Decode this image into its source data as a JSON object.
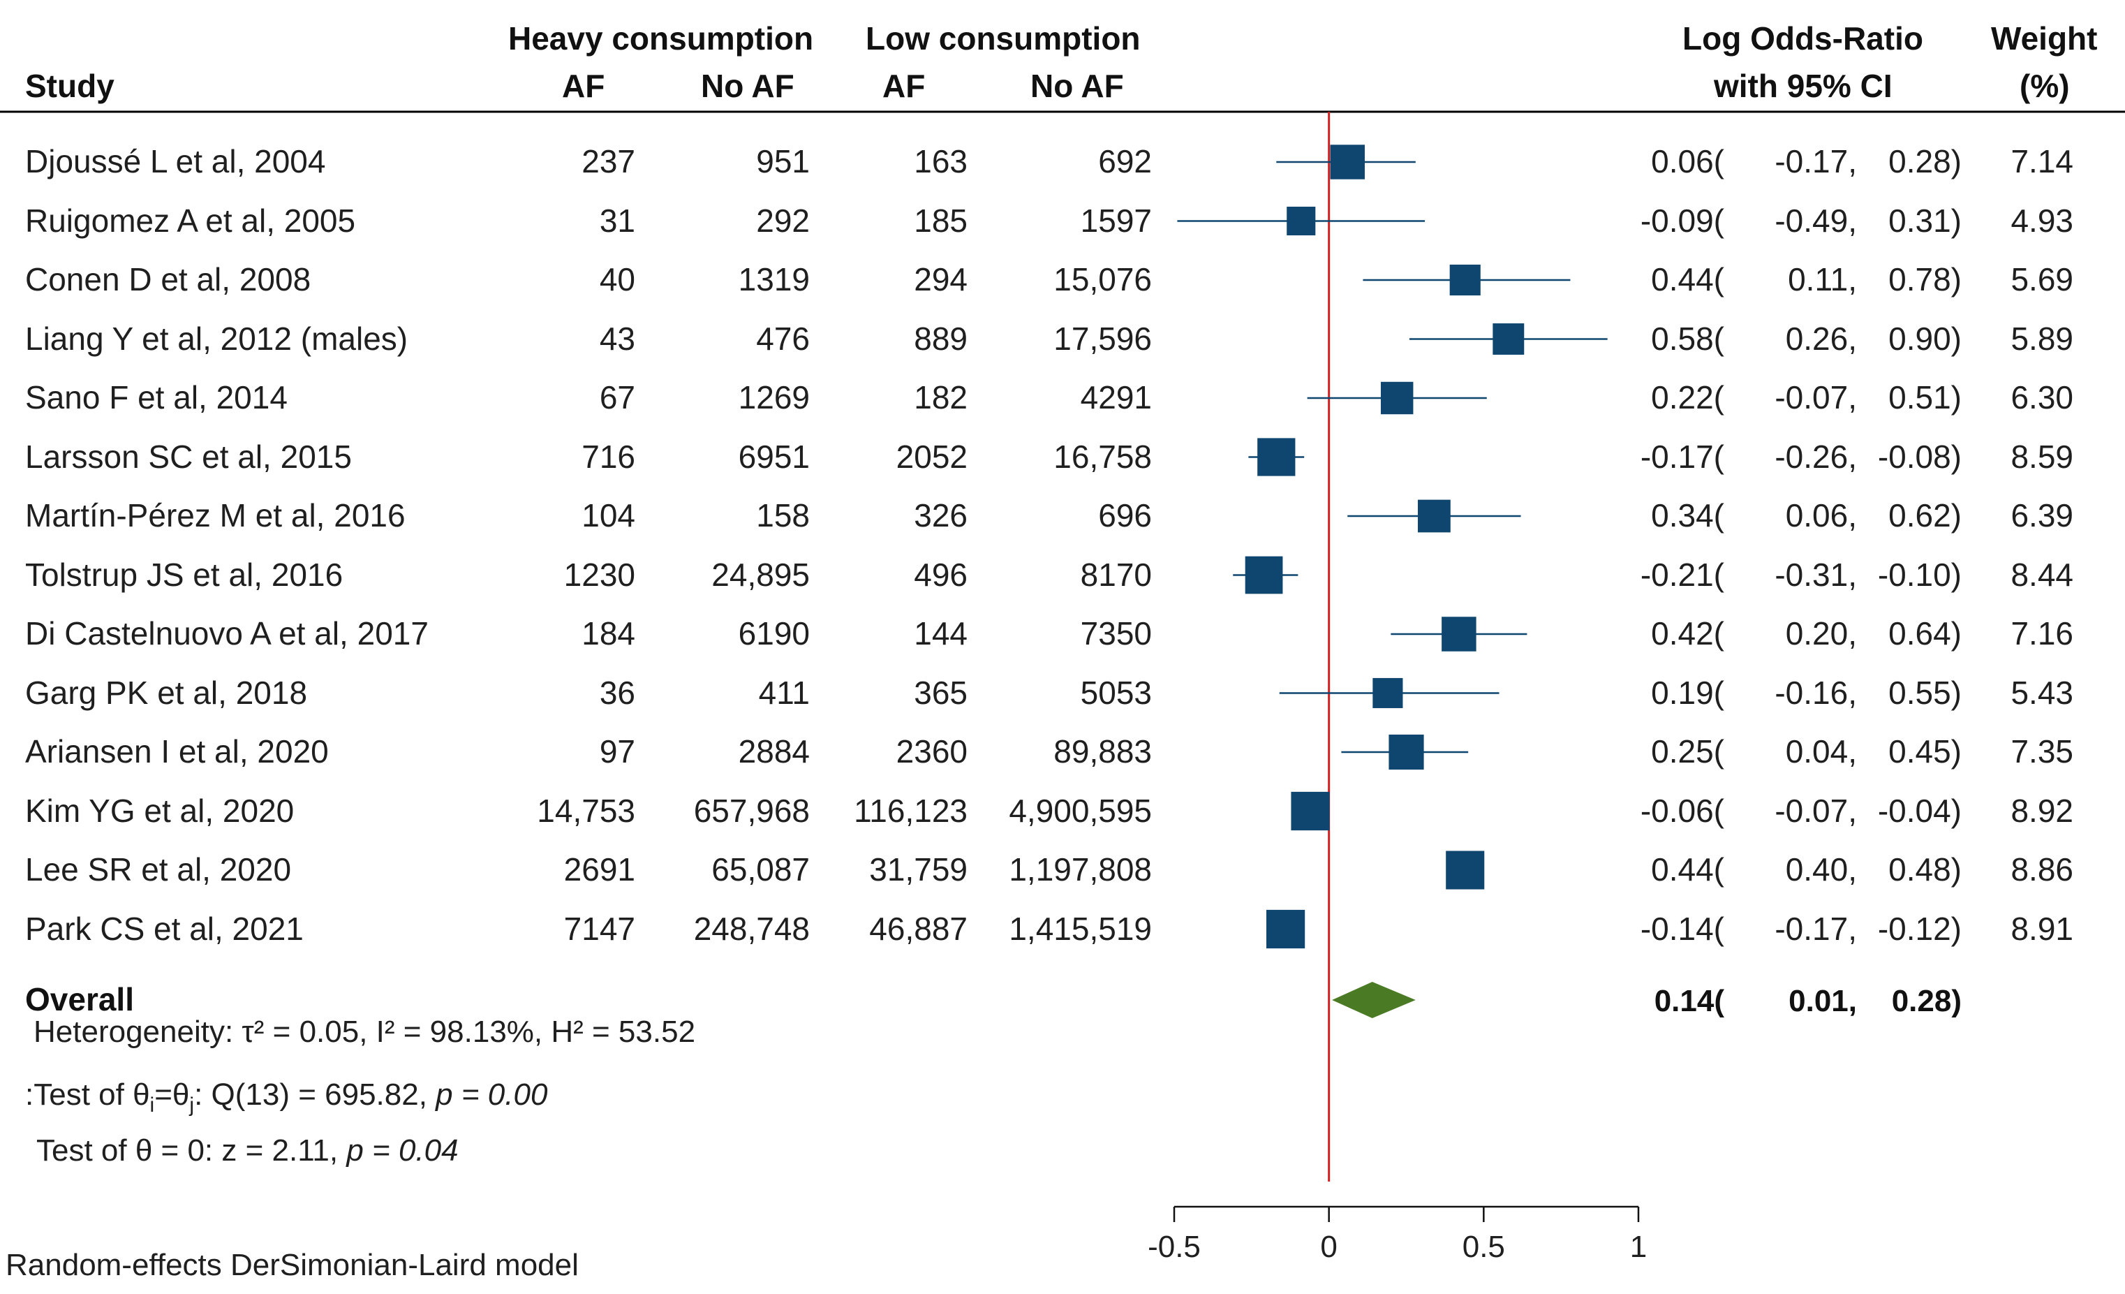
{
  "chart_data": {
    "type": "forest",
    "headers": {
      "study": "Study",
      "heavy": "Heavy consumption",
      "low": "Low consumption",
      "heavy_af": "AF",
      "heavy_noaf": "No AF",
      "low_af": "AF",
      "low_noaf": "No AF",
      "effect_line1": "Log Odds-Ratio",
      "effect_line2": "with 95% CI",
      "weight_line1": "Weight",
      "weight_line2": "(%)"
    },
    "studies": [
      {
        "study": "Djoussé L et al, 2004",
        "heavy_af": "237",
        "heavy_noaf": "951",
        "low_af": "163",
        "low_noaf": "692",
        "est": 0.06,
        "lo": -0.17,
        "hi": 0.28,
        "est_s": "0.06",
        "lo_s": "-0.17,",
        "hi_s": "0.28)",
        "weight": "7.14",
        "w": 7.14
      },
      {
        "study": "Ruigomez A et al, 2005",
        "heavy_af": "31",
        "heavy_noaf": "292",
        "low_af": "185",
        "low_noaf": "1597",
        "est": -0.09,
        "lo": -0.49,
        "hi": 0.31,
        "est_s": "-0.09",
        "lo_s": "-0.49,",
        "hi_s": "0.31)",
        "weight": "4.93",
        "w": 4.93
      },
      {
        "study": "Conen D et al, 2008",
        "heavy_af": "40",
        "heavy_noaf": "1319",
        "low_af": "294",
        "low_noaf": "15,076",
        "est": 0.44,
        "lo": 0.11,
        "hi": 0.78,
        "est_s": "0.44",
        "lo_s": "0.11,",
        "hi_s": "0.78)",
        "weight": "5.69",
        "w": 5.69
      },
      {
        "study": "Liang Y et al, 2012 (males)",
        "heavy_af": "43",
        "heavy_noaf": "476",
        "low_af": "889",
        "low_noaf": "17,596",
        "est": 0.58,
        "lo": 0.26,
        "hi": 0.9,
        "est_s": "0.58",
        "lo_s": "0.26,",
        "hi_s": "0.90)",
        "weight": "5.89",
        "w": 5.89
      },
      {
        "study": "Sano F et al, 2014",
        "heavy_af": "67",
        "heavy_noaf": "1269",
        "low_af": "182",
        "low_noaf": "4291",
        "est": 0.22,
        "lo": -0.07,
        "hi": 0.51,
        "est_s": "0.22",
        "lo_s": "-0.07,",
        "hi_s": "0.51)",
        "weight": "6.30",
        "w": 6.3
      },
      {
        "study": "Larsson SC et al, 2015",
        "heavy_af": "716",
        "heavy_noaf": "6951",
        "low_af": "2052",
        "low_noaf": "16,758",
        "est": -0.17,
        "lo": -0.26,
        "hi": -0.08,
        "est_s": "-0.17",
        "lo_s": "-0.26,",
        "hi_s": "-0.08)",
        "weight": "8.59",
        "w": 8.59
      },
      {
        "study": "Martín-Pérez M et al, 2016",
        "heavy_af": "104",
        "heavy_noaf": "158",
        "low_af": "326",
        "low_noaf": "696",
        "est": 0.34,
        "lo": 0.06,
        "hi": 0.62,
        "est_s": "0.34",
        "lo_s": "0.06,",
        "hi_s": "0.62)",
        "weight": "6.39",
        "w": 6.39
      },
      {
        "study": "Tolstrup JS et al, 2016",
        "heavy_af": "1230",
        "heavy_noaf": "24,895",
        "low_af": "496",
        "low_noaf": "8170",
        "est": -0.21,
        "lo": -0.31,
        "hi": -0.1,
        "est_s": "-0.21",
        "lo_s": "-0.31,",
        "hi_s": "-0.10)",
        "weight": "8.44",
        "w": 8.44
      },
      {
        "study": "Di Castelnuovo A et al, 2017",
        "heavy_af": "184",
        "heavy_noaf": "6190",
        "low_af": "144",
        "low_noaf": "7350",
        "est": 0.42,
        "lo": 0.2,
        "hi": 0.64,
        "est_s": "0.42",
        "lo_s": "0.20,",
        "hi_s": "0.64)",
        "weight": "7.16",
        "w": 7.16
      },
      {
        "study": "Garg PK et al, 2018",
        "heavy_af": "36",
        "heavy_noaf": "411",
        "low_af": "365",
        "low_noaf": "5053",
        "est": 0.19,
        "lo": -0.16,
        "hi": 0.55,
        "est_s": "0.19",
        "lo_s": "-0.16,",
        "hi_s": "0.55)",
        "weight": "5.43",
        "w": 5.43
      },
      {
        "study": "Ariansen I et al, 2020",
        "heavy_af": "97",
        "heavy_noaf": "2884",
        "low_af": "2360",
        "low_noaf": "89,883",
        "est": 0.25,
        "lo": 0.04,
        "hi": 0.45,
        "est_s": "0.25",
        "lo_s": "0.04,",
        "hi_s": "0.45)",
        "weight": "7.35",
        "w": 7.35
      },
      {
        "study": "Kim YG et al, 2020",
        "heavy_af": "14,753",
        "heavy_noaf": "657,968",
        "low_af": "116,123",
        "low_noaf": "4,900,595",
        "est": -0.06,
        "lo": -0.07,
        "hi": -0.04,
        "est_s": "-0.06",
        "lo_s": "-0.07,",
        "hi_s": "-0.04)",
        "weight": "8.92",
        "w": 8.92
      },
      {
        "study": "Lee SR et al, 2020",
        "heavy_af": "2691",
        "heavy_noaf": "65,087",
        "low_af": "31,759",
        "low_noaf": "1,197,808",
        "est": 0.44,
        "lo": 0.4,
        "hi": 0.48,
        "est_s": "0.44",
        "lo_s": "0.40,",
        "hi_s": "0.48)",
        "weight": "8.86",
        "w": 8.86
      },
      {
        "study": "Park CS et al, 2021",
        "heavy_af": "7147",
        "heavy_noaf": "248,748",
        "low_af": "46,887",
        "low_noaf": "1,415,519",
        "est": -0.14,
        "lo": -0.17,
        "hi": -0.12,
        "est_s": "-0.14",
        "lo_s": "-0.17,",
        "hi_s": "-0.12)",
        "weight": "8.91",
        "w": 8.91
      }
    ],
    "overall": {
      "label": "Overall",
      "est": 0.14,
      "lo": 0.01,
      "hi": 0.28,
      "est_s": "0.14",
      "lo_s": "0.01,",
      "hi_s": "0.28)"
    },
    "paren": "(",
    "heterogeneity": "Heterogeneity: τ² = 0.05, I² = 98.13%, H² = 53.52",
    "test_homog_prefix": ":Test of θ",
    "test_homog_sub_i": "i",
    "test_homog_eq": "=θ",
    "test_homog_sub_j": "j",
    "test_homog_stat": ": Q(13) = 695.82, ",
    "test_homog_p": "p = 0.00",
    "test_theta_stat": "Test of θ = 0: z = 2.11, ",
    "test_theta_p": "p = 0.04",
    "model_note": "Random-effects DerSimonian-Laird model",
    "xaxis": {
      "ticks": [
        -0.5,
        0,
        0.5,
        1
      ],
      "tick_labels": [
        "-0.5",
        "0",
        "0.5",
        "1"
      ],
      "range": [
        -0.5,
        1
      ]
    },
    "reference_line": 0,
    "colors": {
      "marker": "#0f4670",
      "diamond": "#4a7a23",
      "refline": "#d0201f",
      "axis": "#111111"
    }
  }
}
